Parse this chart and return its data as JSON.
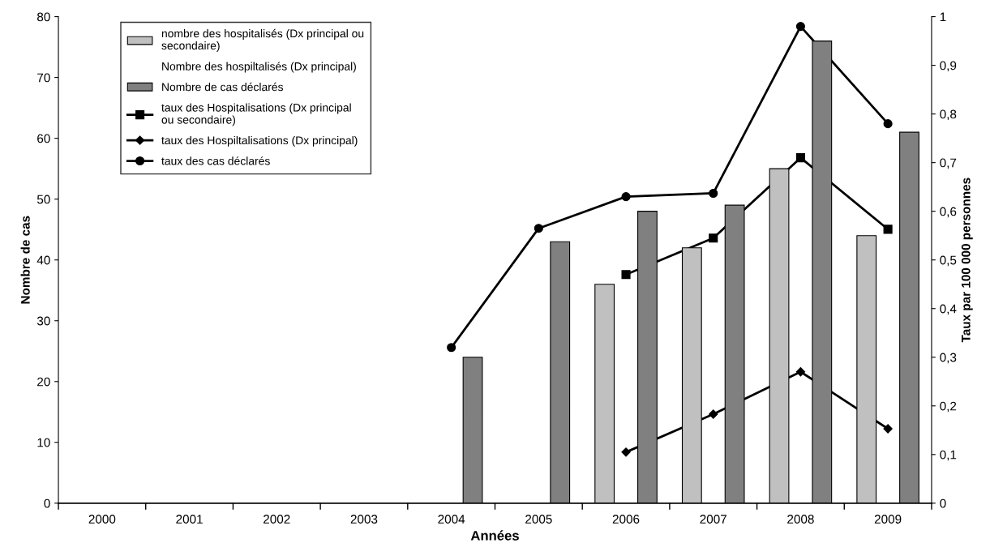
{
  "chart_data": {
    "type": "bar",
    "categories": [
      "2000",
      "2001",
      "2002",
      "2003",
      "2004",
      "2005",
      "2006",
      "2007",
      "2008",
      "2009"
    ],
    "xlabel": "Années",
    "ylabel": "Nombre de cas",
    "y2label": "Taux par 100 000 personnes",
    "series": [
      {
        "name": "nombre des hospitalisés (Dx principal ou secondaire)",
        "color": "#c0c0c0",
        "values": [
          null,
          null,
          null,
          null,
          null,
          null,
          36,
          42,
          55,
          44
        ]
      },
      {
        "name": "Nombre des hospiltalisés (Dx principal)",
        "values": [
          null,
          null,
          null,
          null,
          null,
          null,
          null,
          null,
          null,
          null
        ]
      },
      {
        "name": "Nombre de cas déclarés",
        "color": "#808080",
        "values": [
          null,
          null,
          null,
          null,
          24,
          43,
          48,
          49,
          76,
          61
        ]
      },
      {
        "name": "taux des Hospitalisations (Dx principal ou secondaire)",
        "type": "line",
        "axis": "y2",
        "color": "#000000",
        "marker": "square",
        "values": [
          null,
          null,
          null,
          null,
          null,
          null,
          0.47,
          0.545,
          0.71,
          0.563
        ]
      },
      {
        "name": "taux des Hospiltalisations (Dx principal)",
        "type": "line",
        "axis": "y2",
        "color": "#000000",
        "marker": "diamond",
        "values": [
          null,
          null,
          null,
          null,
          null,
          null,
          0.105,
          0.183,
          0.27,
          0.153
        ]
      },
      {
        "name": "taux des cas déclarés",
        "type": "line",
        "axis": "y2",
        "color": "#000000",
        "marker": "circle",
        "values": [
          null,
          null,
          null,
          null,
          0.32,
          0.565,
          0.63,
          0.637,
          0.98,
          0.78
        ]
      }
    ],
    "ylim": [
      0,
      80
    ],
    "yticks": [
      0,
      10,
      20,
      30,
      40,
      50,
      60,
      70,
      80
    ],
    "y2lim": [
      0,
      1
    ],
    "y2ticks": [
      0,
      {
        "value": 0.1,
        "label": "0,1"
      },
      {
        "value": 0.2,
        "label": "0,2"
      },
      {
        "value": 0.3,
        "label": "0,3"
      },
      {
        "value": 0.4,
        "label": "0,4"
      },
      {
        "value": 0.5,
        "label": "0,5"
      },
      {
        "value": 0.6,
        "label": "0,6"
      },
      {
        "value": 0.7,
        "label": "0,7"
      },
      {
        "value": 0.8,
        "label": "0,8"
      },
      {
        "value": 0.9,
        "label": "0,9"
      },
      1
    ],
    "grid": false,
    "legend": "top left"
  }
}
